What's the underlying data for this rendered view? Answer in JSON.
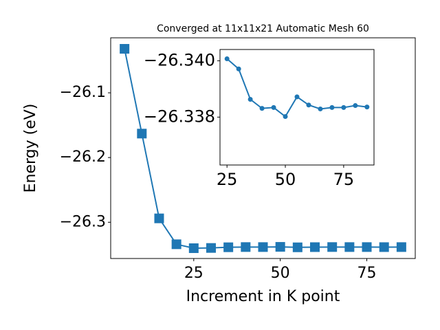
{
  "chart_data": [
    {
      "type": "line",
      "title": "Converged at 11x11x21 Automatic Mesh 60",
      "x_label": "Increment in K point",
      "y_label": "Energy (eV)",
      "x": [
        5,
        10,
        15,
        20,
        25,
        30,
        35,
        40,
        45,
        50,
        55,
        60,
        65,
        70,
        75,
        80,
        85
      ],
      "values": [
        -26.032,
        -26.163,
        -26.294,
        -26.334,
        -26.34007,
        -26.33971,
        -26.33863,
        -26.33831,
        -26.33834,
        -26.33802,
        -26.33872,
        -26.33843,
        -26.33829,
        -26.33834,
        -26.33834,
        -26.33841,
        -26.33836
      ],
      "color": "#1f77b4",
      "marker": "square",
      "xlim": [
        1,
        89
      ],
      "xticks": [
        25,
        50,
        75
      ],
      "ylim": [
        -26.356,
        -26.015
      ],
      "yticks": [
        {
          "value": -26.3,
          "label": "−26.3"
        },
        {
          "value": -26.2,
          "label": "−26.2"
        },
        {
          "value": -26.1,
          "label": "−26.1"
        }
      ]
    },
    {
      "type": "line",
      "x": [
        25,
        30,
        35,
        40,
        45,
        50,
        55,
        60,
        65,
        70,
        75,
        80,
        85
      ],
      "values": [
        -26.34007,
        -26.33971,
        -26.33863,
        -26.33831,
        -26.33834,
        -26.33802,
        -26.33872,
        -26.33843,
        -26.33829,
        -26.33834,
        -26.33834,
        -26.33841,
        -26.33836
      ],
      "color": "#1f77b4",
      "marker": "circle",
      "xlim": [
        22,
        88
      ],
      "xticks": [
        25,
        50,
        75
      ],
      "ylim": [
        -26.3363,
        -26.3404
      ],
      "yticks": [
        {
          "value": -26.34,
          "label": "−26.340"
        },
        {
          "value": -26.338,
          "label": "−26.338"
        }
      ]
    }
  ]
}
